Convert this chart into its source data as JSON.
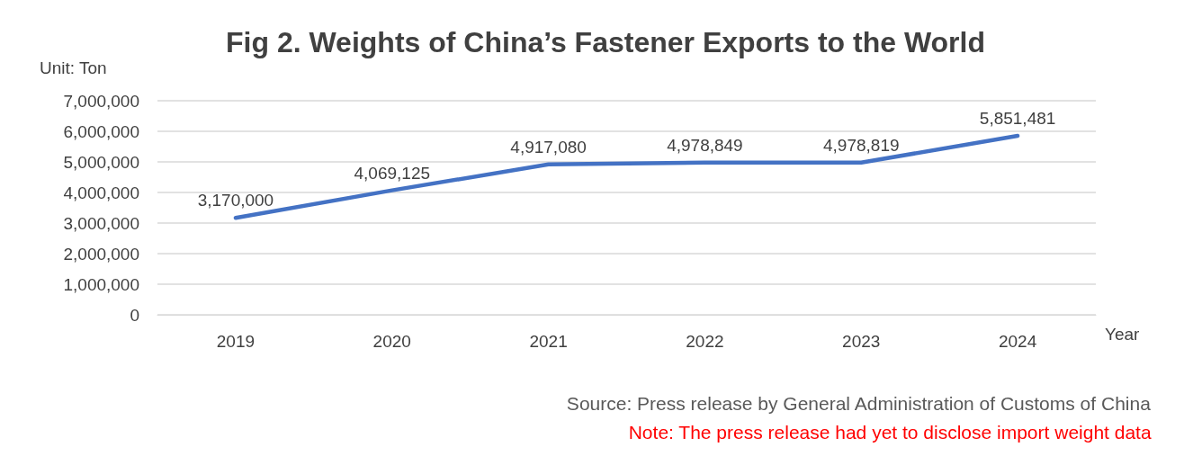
{
  "chart_data": {
    "type": "line",
    "title": "Fig 2. Weights of China’s Fastener Exports to the World",
    "ylabel": "Unit: Ton",
    "xlabel": "Year",
    "categories": [
      "2019",
      "2020",
      "2021",
      "2022",
      "2023",
      "2024"
    ],
    "series": [
      {
        "color": "#4472c4",
        "values": [
          3170000,
          4069125,
          4917080,
          4978849,
          4978819,
          5851481
        ],
        "value_labels": [
          "3,170,000",
          "4,069,125",
          "4,917,080",
          "4,978,849",
          "4,978,819",
          "5,851,481"
        ]
      }
    ],
    "ylim": [
      0,
      7000000
    ],
    "yticks": [
      0,
      {
        "value": 1000000,
        "label": "1,000,000"
      },
      {
        "value": 2000000,
        "label": "2,000,000"
      },
      {
        "value": 3000000,
        "label": "3,000,000"
      },
      {
        "value": 4000000,
        "label": "4,000,000"
      },
      {
        "value": 5000000,
        "label": "5,000,000"
      },
      {
        "value": 6000000,
        "label": "6,000,000"
      },
      {
        "value": 7000000,
        "label": "7,000,000"
      }
    ],
    "grid": "y",
    "marker": "none",
    "line_style": "solid",
    "annotations": [
      "Source: Press release by General Administration of Customs of China",
      "Note: The press release had yet to disclose import weight data"
    ]
  }
}
